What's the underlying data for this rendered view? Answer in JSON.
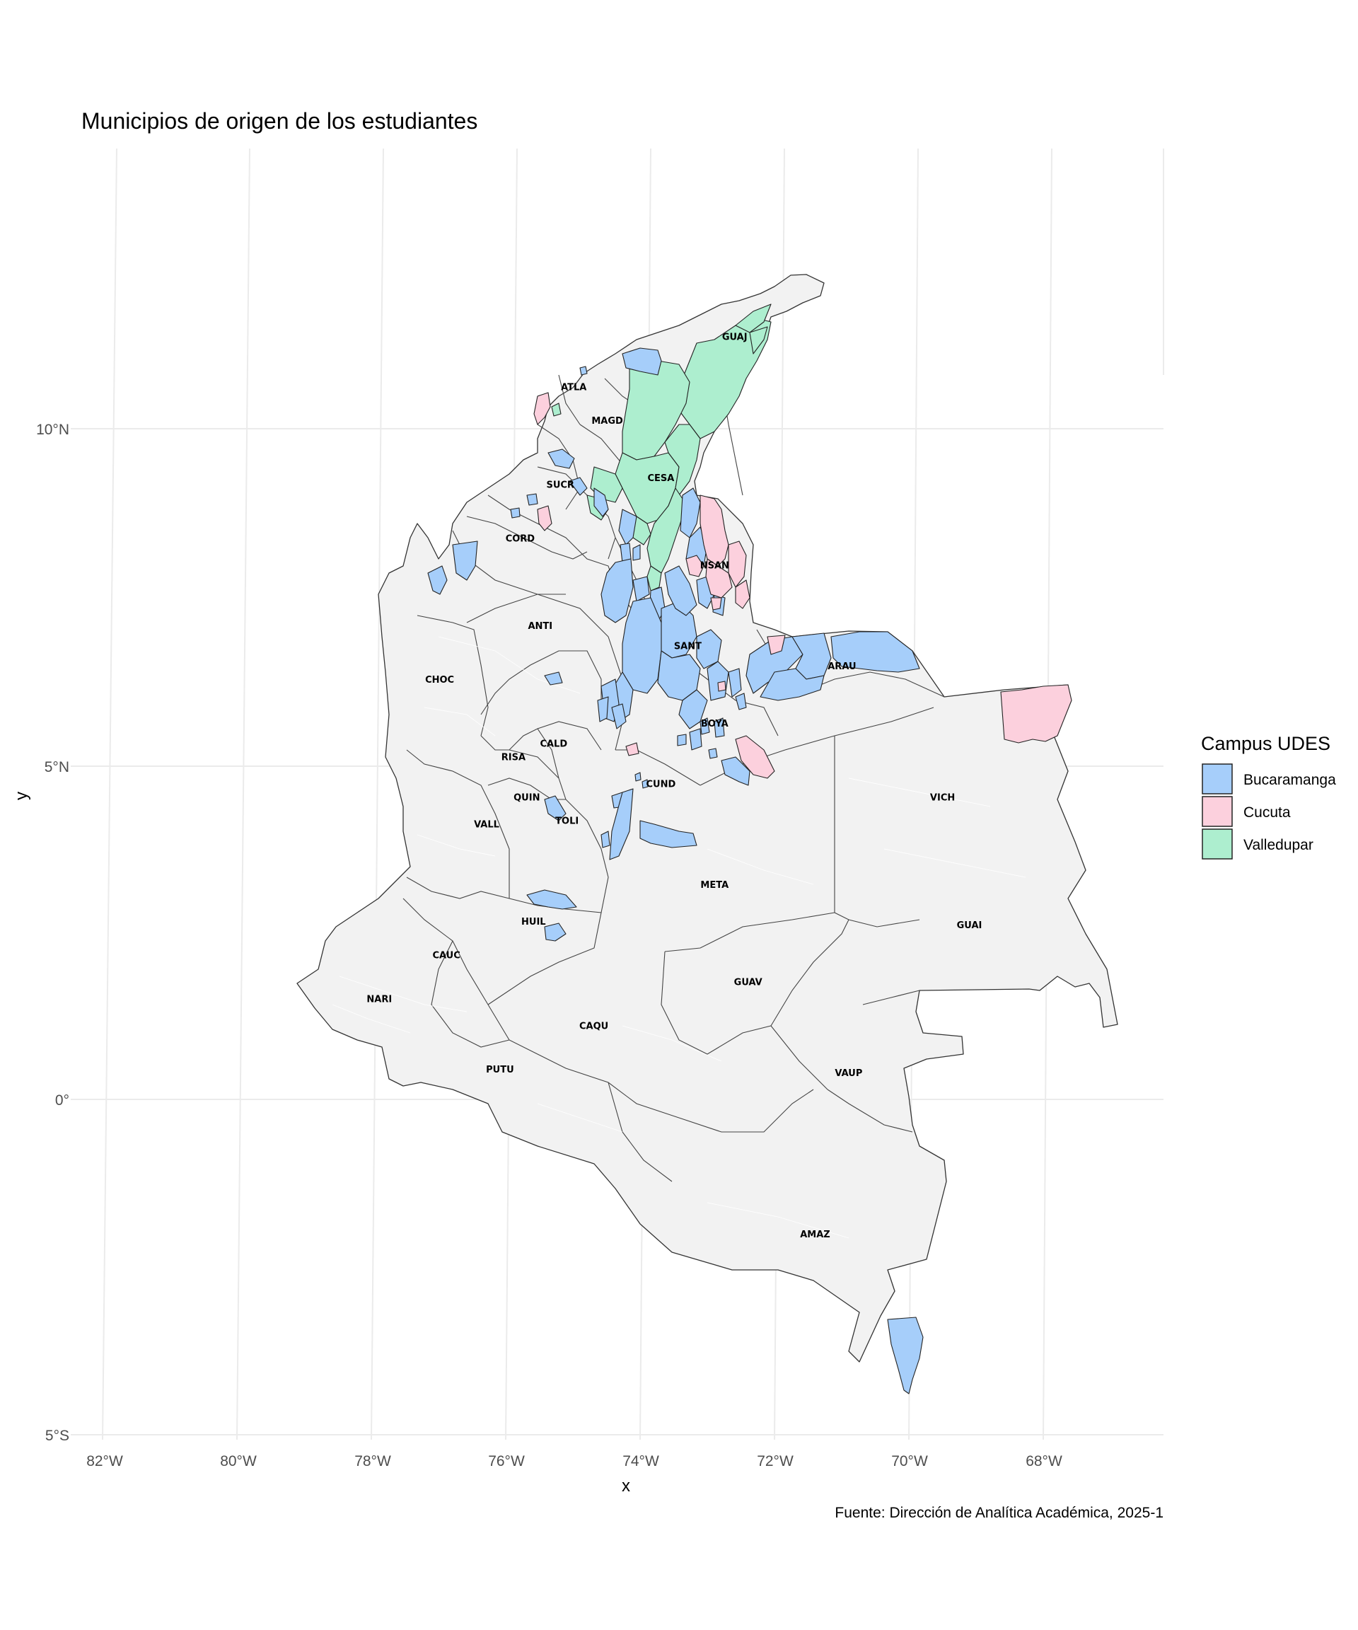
{
  "title": "Municipios de origen de los estudiantes",
  "caption": "Fuente: Dirección de Analítica Académica, 2025-1",
  "x_axis": {
    "title": "x",
    "ticks": [
      {
        "value": -82,
        "label": "82°W"
      },
      {
        "value": -80,
        "label": "80°W"
      },
      {
        "value": -78,
        "label": "78°W"
      },
      {
        "value": -76,
        "label": "76°W"
      },
      {
        "value": -74,
        "label": "74°W"
      },
      {
        "value": -72,
        "label": "72°W"
      },
      {
        "value": -70,
        "label": "70°W"
      },
      {
        "value": -68,
        "label": "68°W"
      }
    ]
  },
  "y_axis": {
    "title": "y",
    "ticks": [
      {
        "value": 10,
        "label": "10°N"
      },
      {
        "value": 5,
        "label": "5°N"
      },
      {
        "value": 0,
        "label": "0°"
      },
      {
        "value": -5,
        "label": "5°S"
      }
    ]
  },
  "legend": {
    "title": "Campus UDES",
    "items": [
      {
        "label": "Bucaramanga",
        "color": "#a6cefa"
      },
      {
        "label": "Cucuta",
        "color": "#fcd0dd"
      },
      {
        "label": "Valledupar",
        "color": "#adeecf"
      }
    ]
  },
  "colors": {
    "background_land": "#f2f2f2",
    "border": "#333333",
    "gridline": "#ebebeb"
  },
  "department_labels": [
    {
      "code": "GUAJ",
      "lon": -72.6,
      "lat": 11.3
    },
    {
      "code": "ATLA",
      "lon": -75.0,
      "lat": 10.55
    },
    {
      "code": "MAGD",
      "lon": -74.5,
      "lat": 10.05
    },
    {
      "code": "SUCR",
      "lon": -75.2,
      "lat": 9.1
    },
    {
      "code": "CESA",
      "lon": -73.7,
      "lat": 9.2
    },
    {
      "code": "CORD",
      "lon": -75.8,
      "lat": 8.3
    },
    {
      "code": "NSAN",
      "lon": -72.9,
      "lat": 7.9
    },
    {
      "code": "ANTI",
      "lon": -75.5,
      "lat": 7.0
    },
    {
      "code": "SANT",
      "lon": -73.3,
      "lat": 6.7
    },
    {
      "code": "ARAU",
      "lon": -71.0,
      "lat": 6.4
    },
    {
      "code": "CHOC",
      "lon": -77.0,
      "lat": 6.2
    },
    {
      "code": "BOYA",
      "lon": -72.9,
      "lat": 5.55
    },
    {
      "code": "CALD",
      "lon": -75.3,
      "lat": 5.25
    },
    {
      "code": "RISA",
      "lon": -75.9,
      "lat": 5.05
    },
    {
      "code": "CUND",
      "lon": -73.7,
      "lat": 4.65
    },
    {
      "code": "VICH",
      "lon": -69.5,
      "lat": 4.45
    },
    {
      "code": "QUIN",
      "lon": -75.7,
      "lat": 4.45
    },
    {
      "code": "TOLI",
      "lon": -75.1,
      "lat": 4.1
    },
    {
      "code": "VALL",
      "lon": -76.3,
      "lat": 4.05
    },
    {
      "code": "META",
      "lon": -72.9,
      "lat": 3.15
    },
    {
      "code": "HUIL",
      "lon": -75.6,
      "lat": 2.6
    },
    {
      "code": "GUAI",
      "lon": -69.1,
      "lat": 2.55
    },
    {
      "code": "CAUC",
      "lon": -76.9,
      "lat": 2.1
    },
    {
      "code": "GUAV",
      "lon": -72.4,
      "lat": 1.7
    },
    {
      "code": "NARI",
      "lon": -77.9,
      "lat": 1.45
    },
    {
      "code": "CAQU",
      "lon": -74.7,
      "lat": 1.05
    },
    {
      "code": "PUTU",
      "lon": -76.1,
      "lat": 0.4
    },
    {
      "code": "VAUP",
      "lon": -70.9,
      "lat": 0.35
    },
    {
      "code": "AMAZ",
      "lon": -71.4,
      "lat": -2.05
    }
  ]
}
